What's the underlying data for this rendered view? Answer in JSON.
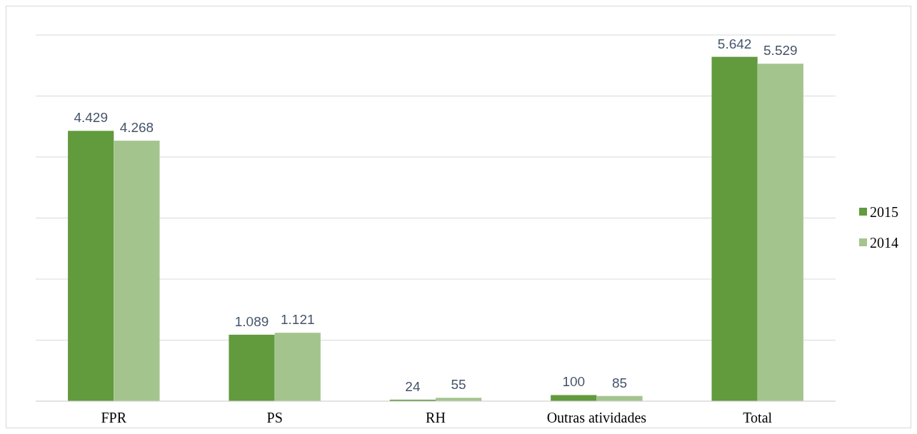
{
  "chart_data": {
    "type": "bar",
    "categories": [
      "FPR",
      "PS",
      "RH",
      "Outras atividades",
      "Total"
    ],
    "series": [
      {
        "name": "2015",
        "color": "#629a3e",
        "values": [
          4429,
          1089,
          24,
          100,
          5642
        ],
        "value_labels": [
          "4.429",
          "1.089",
          "24",
          "100",
          "5.642"
        ]
      },
      {
        "name": "2014",
        "color": "#a4c48e",
        "values": [
          4268,
          1121,
          55,
          85,
          5529
        ],
        "value_labels": [
          "4.268",
          "1.121",
          "55",
          "85",
          "5.529"
        ]
      }
    ],
    "ylim": [
      0,
      6000
    ],
    "yticks": [
      {
        "value": 0,
        "label": null
      },
      {
        "value": 1000,
        "label": null
      },
      {
        "value": 2000,
        "label": null
      },
      {
        "value": 3000,
        "label": null
      },
      {
        "value": 4000,
        "label": null
      },
      {
        "value": 5000,
        "label": null
      },
      {
        "value": 6000,
        "label": null
      }
    ],
    "grid": "y",
    "legend": "right"
  }
}
